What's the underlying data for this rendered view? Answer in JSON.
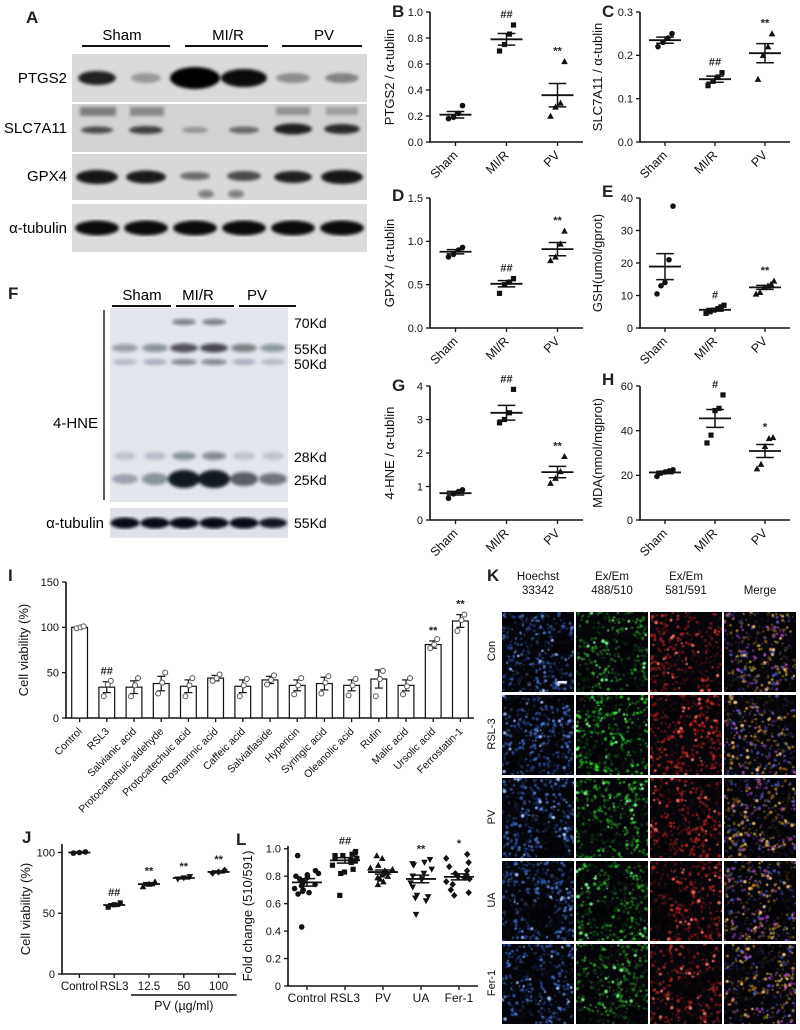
{
  "panel_letters": {
    "a": "A",
    "b": "B",
    "c": "C",
    "d": "D",
    "e": "E",
    "f": "F",
    "g": "G",
    "h": "H",
    "i": "I",
    "j": "J",
    "k": "K",
    "l": "L"
  },
  "panel_a": {
    "groups": [
      "Sham",
      "MI/R",
      "PV"
    ],
    "row_labels": [
      "PTGS2",
      "SLC7A11",
      "GPX4",
      "α-tubulin"
    ]
  },
  "panel_f": {
    "groups": [
      "Sham",
      "MI/R",
      "PV"
    ],
    "antibody_label": "4-HNE",
    "loading_label": "α-tubulin",
    "mw_markers": [
      "70Kd",
      "55Kd",
      "50Kd",
      "28Kd",
      "25Kd"
    ],
    "loading_mw": "55Kd"
  },
  "panel_k": {
    "column_headers": [
      {
        "l1": "Hoechst",
        "l2": "33342"
      },
      {
        "l1": "Ex/Em",
        "l2": "488/510"
      },
      {
        "l1": "Ex/Em",
        "l2": "581/591"
      },
      {
        "l1": "Merge",
        "l2": ""
      }
    ],
    "row_labels": [
      "Con",
      "RSL-3",
      "PV",
      "UA",
      "Fer-1"
    ]
  },
  "chart_data": [
    {
      "id": "B",
      "type": "scatter",
      "ylabel": "PTGS2 / α-tublin",
      "ylim": [
        0,
        1.0
      ],
      "ytick_vals": [
        0,
        0.2,
        0.4,
        0.6,
        0.8,
        1.0
      ],
      "ytick_labels": [
        "0.0",
        "0.2",
        "0.4",
        "0.6",
        "0.8",
        "1.0"
      ],
      "categories": [
        "Sham",
        "MI/R",
        "PV"
      ],
      "rotate_labels": true,
      "groups": [
        {
          "marker": "circle",
          "points": [
            0.18,
            0.19,
            0.22,
            0.28
          ],
          "mean": 0.21,
          "sem": 0.025,
          "sig": ""
        },
        {
          "marker": "square",
          "points": [
            0.7,
            0.75,
            0.83,
            0.9
          ],
          "mean": 0.79,
          "sem": 0.045,
          "sig": "##"
        },
        {
          "marker": "triangle",
          "points": [
            0.2,
            0.27,
            0.3,
            0.62
          ],
          "mean": 0.36,
          "sem": 0.09,
          "sig": "**"
        }
      ]
    },
    {
      "id": "C",
      "type": "scatter",
      "ylabel": "SLC7A11 / α-tublin",
      "ylim": [
        0,
        0.3
      ],
      "ytick_vals": [
        0,
        0.1,
        0.2,
        0.3
      ],
      "ytick_labels": [
        "0.0",
        "0.1",
        "0.2",
        "0.3"
      ],
      "categories": [
        "Sham",
        "MI/R",
        "PV"
      ],
      "rotate_labels": true,
      "groups": [
        {
          "marker": "circle",
          "points": [
            0.22,
            0.23,
            0.24,
            0.25
          ],
          "mean": 0.235,
          "sem": 0.007,
          "sig": ""
        },
        {
          "marker": "square",
          "points": [
            0.13,
            0.14,
            0.15,
            0.16
          ],
          "mean": 0.145,
          "sem": 0.007,
          "sig": "##"
        },
        {
          "marker": "triangle",
          "points": [
            0.145,
            0.2,
            0.22,
            0.25
          ],
          "mean": 0.205,
          "sem": 0.022,
          "sig": "**"
        }
      ]
    },
    {
      "id": "D",
      "type": "scatter",
      "ylabel": "GPX4 / α-tublin",
      "ylim": [
        0,
        1.5
      ],
      "ytick_vals": [
        0,
        0.5,
        1.0,
        1.5
      ],
      "ytick_labels": [
        "0.0",
        "0.5",
        "1.0",
        "1.5"
      ],
      "categories": [
        "Sham",
        "MI/R",
        "PV"
      ],
      "rotate_labels": true,
      "groups": [
        {
          "marker": "circle",
          "points": [
            0.82,
            0.85,
            0.9,
            0.93
          ],
          "mean": 0.88,
          "sem": 0.024,
          "sig": ""
        },
        {
          "marker": "square",
          "points": [
            0.4,
            0.5,
            0.53,
            0.57
          ],
          "mean": 0.51,
          "sem": 0.036,
          "sig": "##"
        },
        {
          "marker": "triangle",
          "points": [
            0.78,
            0.82,
            0.97,
            1.12
          ],
          "mean": 0.91,
          "sem": 0.077,
          "sig": "**"
        }
      ]
    },
    {
      "id": "E",
      "type": "scatter",
      "ylabel": "GSH(umol/gprot)",
      "ylim": [
        0,
        40
      ],
      "ytick_vals": [
        0,
        10,
        20,
        30,
        40
      ],
      "ytick_labels": [
        "0",
        "10",
        "20",
        "30",
        "40"
      ],
      "categories": [
        "Sham",
        "MI/R",
        "PV"
      ],
      "rotate_labels": true,
      "groups": [
        {
          "marker": "circle",
          "points": [
            10.5,
            13,
            14,
            21,
            37.5
          ],
          "mean": 18.9,
          "sem": 4.0,
          "sig": ""
        },
        {
          "marker": "square",
          "points": [
            4.5,
            5,
            5.5,
            6,
            6.5,
            7
          ],
          "mean": 5.6,
          "sem": 0.4,
          "sig": "#"
        },
        {
          "marker": "triangle",
          "points": [
            10.5,
            11,
            12.5,
            13,
            13.5,
            14.5
          ],
          "mean": 12.5,
          "sem": 0.6,
          "sig": "**"
        }
      ]
    },
    {
      "id": "G",
      "type": "scatter",
      "ylabel": "4-HNE / α-tublin",
      "ylim": [
        0,
        4
      ],
      "ytick_vals": [
        0,
        1,
        2,
        3,
        4
      ],
      "ytick_labels": [
        "0",
        "1",
        "2",
        "3",
        "4"
      ],
      "categories": [
        "Sham",
        "MI/R",
        "PV"
      ],
      "rotate_labels": true,
      "groups": [
        {
          "marker": "circle",
          "points": [
            0.65,
            0.78,
            0.85,
            0.9
          ],
          "mean": 0.8,
          "sem": 0.055,
          "sig": ""
        },
        {
          "marker": "square",
          "points": [
            2.9,
            3.0,
            3.2,
            3.9
          ],
          "mean": 3.2,
          "sem": 0.22,
          "sig": "##"
        },
        {
          "marker": "triangle",
          "points": [
            1.1,
            1.25,
            1.45,
            1.9
          ],
          "mean": 1.43,
          "sem": 0.17,
          "sig": "**"
        }
      ]
    },
    {
      "id": "H",
      "type": "scatter",
      "ylabel": "MDA(nmol/mgprot)",
      "ylim": [
        0,
        60
      ],
      "ytick_vals": [
        0,
        20,
        40,
        60
      ],
      "ytick_labels": [
        "0",
        "20",
        "40",
        "60"
      ],
      "categories": [
        "Sham",
        "MI/R",
        "PV"
      ],
      "rotate_labels": true,
      "groups": [
        {
          "marker": "circle",
          "points": [
            19.5,
            21,
            21.5,
            22,
            22.5
          ],
          "mean": 21.3,
          "sem": 0.55,
          "sig": ""
        },
        {
          "marker": "square",
          "points": [
            34.5,
            38,
            49,
            50,
            56
          ],
          "mean": 45.5,
          "sem": 4.0,
          "sig": "#"
        },
        {
          "marker": "triangle",
          "points": [
            23,
            25,
            33,
            36.5,
            37
          ],
          "mean": 30.9,
          "sem": 2.9,
          "sig": "*"
        }
      ]
    },
    {
      "id": "I",
      "type": "bar",
      "ylabel": "Cell viability (%)",
      "ylim": [
        0,
        150
      ],
      "ytick_vals": [
        0,
        50,
        100,
        150
      ],
      "ytick_labels": [
        "0",
        "50",
        "100",
        "150"
      ],
      "categories": [
        "Control",
        "RSL3",
        "Salvianic acid",
        "Protocatechuic aldehyde",
        "Protocatechuic acid",
        "Rosmarinic acid",
        "Caffeic acid",
        "Salviaflaside",
        "Hypericin",
        "Syringic acid",
        "Oleanolic acid",
        "Rutin",
        "Malic acid",
        "Ursolic acid",
        "Ferrostatin-1"
      ],
      "rotate_labels": true,
      "values": [
        100,
        34,
        34,
        38,
        35,
        44,
        35,
        42,
        36,
        38,
        36,
        43,
        36,
        81,
        107
      ],
      "sem": [
        1,
        6,
        7,
        8,
        7,
        3,
        7,
        4,
        6,
        7,
        6,
        10,
        6,
        4,
        7
      ],
      "sig": [
        "",
        "##",
        "",
        "",
        "",
        "",
        "",
        "",
        "",
        "",
        "",
        "",
        "",
        "**",
        "**"
      ],
      "points": [
        [
          99,
          100,
          101
        ],
        [
          24,
          37,
          41
        ],
        [
          24,
          36,
          44
        ],
        [
          27,
          39,
          50
        ],
        [
          24,
          36,
          44
        ],
        [
          41,
          44,
          48
        ],
        [
          24,
          36,
          43
        ],
        [
          37,
          42,
          47
        ],
        [
          26,
          36,
          44
        ],
        [
          27,
          39,
          46
        ],
        [
          25,
          36,
          43
        ],
        [
          24,
          43,
          52
        ],
        [
          26,
          35,
          44
        ],
        [
          77,
          81,
          87
        ],
        [
          96,
          108,
          114
        ]
      ]
    },
    {
      "id": "J",
      "type": "scatter",
      "ylabel": "Cell viability (%)",
      "ylim": [
        0,
        107
      ],
      "ytick_vals": [
        0,
        50,
        100
      ],
      "ytick_labels": [
        "0",
        "50",
        "100"
      ],
      "categories": [
        "Control",
        "RSL3",
        "12.5",
        "50",
        "100"
      ],
      "rotate_labels": false,
      "group_label": {
        "text": "PV (µg/ml)",
        "from": 2,
        "to": 4
      },
      "groups": [
        {
          "marker": "circle",
          "points": [
            99.5,
            100,
            100.5
          ],
          "mean": 100,
          "sem": 0.4,
          "sig": ""
        },
        {
          "marker": "square",
          "points": [
            55,
            57,
            58.5
          ],
          "mean": 56.8,
          "sem": 1.0,
          "sig": "##"
        },
        {
          "marker": "triangle",
          "points": [
            72,
            74,
            76
          ],
          "mean": 74,
          "sem": 1.2,
          "sig": "**"
        },
        {
          "marker": "triangle-down",
          "points": [
            78,
            79,
            80
          ],
          "mean": 79,
          "sem": 0.7,
          "sig": "**"
        },
        {
          "marker": "diamond",
          "points": [
            83,
            84,
            85.5
          ],
          "mean": 84,
          "sem": 0.8,
          "sig": "**"
        }
      ]
    },
    {
      "id": "L",
      "type": "scatter",
      "ylabel": "Fold change (510/591)",
      "ylim": [
        0,
        1.02
      ],
      "ytick_vals": [
        0,
        0.2,
        0.4,
        0.6,
        0.8,
        1.0
      ],
      "ytick_labels": [
        "0",
        "0.2",
        "0.4",
        "0.6",
        "0.8",
        "1.0"
      ],
      "categories": [
        "Control",
        "RSL3",
        "PV",
        "UA",
        "Fer-1"
      ],
      "rotate_labels": false,
      "groups": [
        {
          "marker": "circle",
          "points": [
            0.43,
            0.67,
            0.68,
            0.69,
            0.7,
            0.71,
            0.73,
            0.74,
            0.75,
            0.76,
            0.78,
            0.79,
            0.8,
            0.81,
            0.82,
            0.84,
            0.95
          ],
          "mean": 0.755,
          "sem": 0.027,
          "sig": ""
        },
        {
          "marker": "square",
          "points": [
            0.66,
            0.82,
            0.83,
            0.85,
            0.88,
            0.9,
            0.91,
            0.92,
            0.93,
            0.94,
            0.95,
            0.95,
            0.96,
            0.97,
            0.98
          ],
          "mean": 0.915,
          "sem": 0.02,
          "sig": "##"
        },
        {
          "marker": "triangle",
          "points": [
            0.74,
            0.76,
            0.78,
            0.79,
            0.8,
            0.81,
            0.82,
            0.83,
            0.84,
            0.85,
            0.86,
            0.88,
            0.93,
            0.95
          ],
          "mean": 0.83,
          "sem": 0.015,
          "sig": ""
        },
        {
          "marker": "triangle-down",
          "points": [
            0.52,
            0.62,
            0.64,
            0.65,
            0.66,
            0.72,
            0.75,
            0.78,
            0.8,
            0.82,
            0.85,
            0.88,
            0.89,
            0.9,
            0.92
          ],
          "mean": 0.78,
          "sem": 0.028,
          "sig": "**"
        },
        {
          "marker": "diamond",
          "points": [
            0.66,
            0.68,
            0.7,
            0.74,
            0.76,
            0.78,
            0.79,
            0.8,
            0.81,
            0.82,
            0.84,
            0.87,
            0.9,
            0.93,
            0.96
          ],
          "mean": 0.795,
          "sem": 0.022,
          "sig": "*"
        }
      ]
    }
  ]
}
